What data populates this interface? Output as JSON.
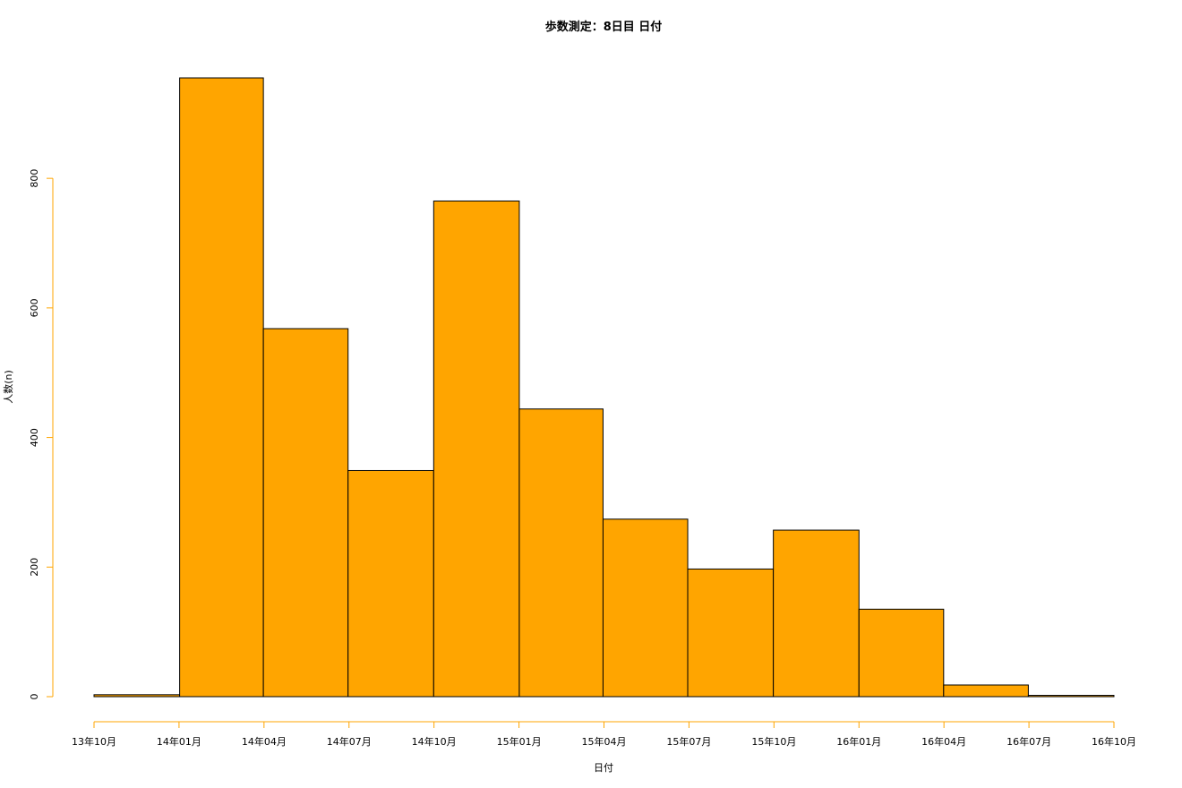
{
  "chart_data": {
    "type": "bar",
    "title": "歩数測定：8日目 日付",
    "xlabel": "日付",
    "ylabel": "人数(n)",
    "x_ticks": [
      "13年10月",
      "14年01月",
      "14年04月",
      "14年07月",
      "14年10月",
      "15年01月",
      "15年04月",
      "15年07月",
      "15年10月",
      "16年01月",
      "16年04月",
      "16年07月",
      "16年10月"
    ],
    "bins": [
      {
        "start": "2013-10-01",
        "end": "2014-01-01",
        "count": 3
      },
      {
        "start": "2014-01-01",
        "end": "2014-04-01",
        "count": 955
      },
      {
        "start": "2014-04-01",
        "end": "2014-07-01",
        "count": 568
      },
      {
        "start": "2014-07-01",
        "end": "2014-10-01",
        "count": 349
      },
      {
        "start": "2014-10-01",
        "end": "2015-01-01",
        "count": 765
      },
      {
        "start": "2015-01-01",
        "end": "2015-04-01",
        "count": 444
      },
      {
        "start": "2015-04-01",
        "end": "2015-07-01",
        "count": 274
      },
      {
        "start": "2015-07-01",
        "end": "2015-10-01",
        "count": 197
      },
      {
        "start": "2015-10-01",
        "end": "2016-01-01",
        "count": 257
      },
      {
        "start": "2016-01-01",
        "end": "2016-04-01",
        "count": 135
      },
      {
        "start": "2016-04-01",
        "end": "2016-07-01",
        "count": 18
      },
      {
        "start": "2016-07-01",
        "end": "2016-10-01",
        "count": 2
      }
    ],
    "y_ticks": [
      0,
      200,
      400,
      600,
      800
    ],
    "ylim": [
      0,
      955
    ],
    "grid": false,
    "bar_fill": "#FFA500",
    "bar_stroke": "#000000",
    "axis_color": "#FFA500"
  }
}
